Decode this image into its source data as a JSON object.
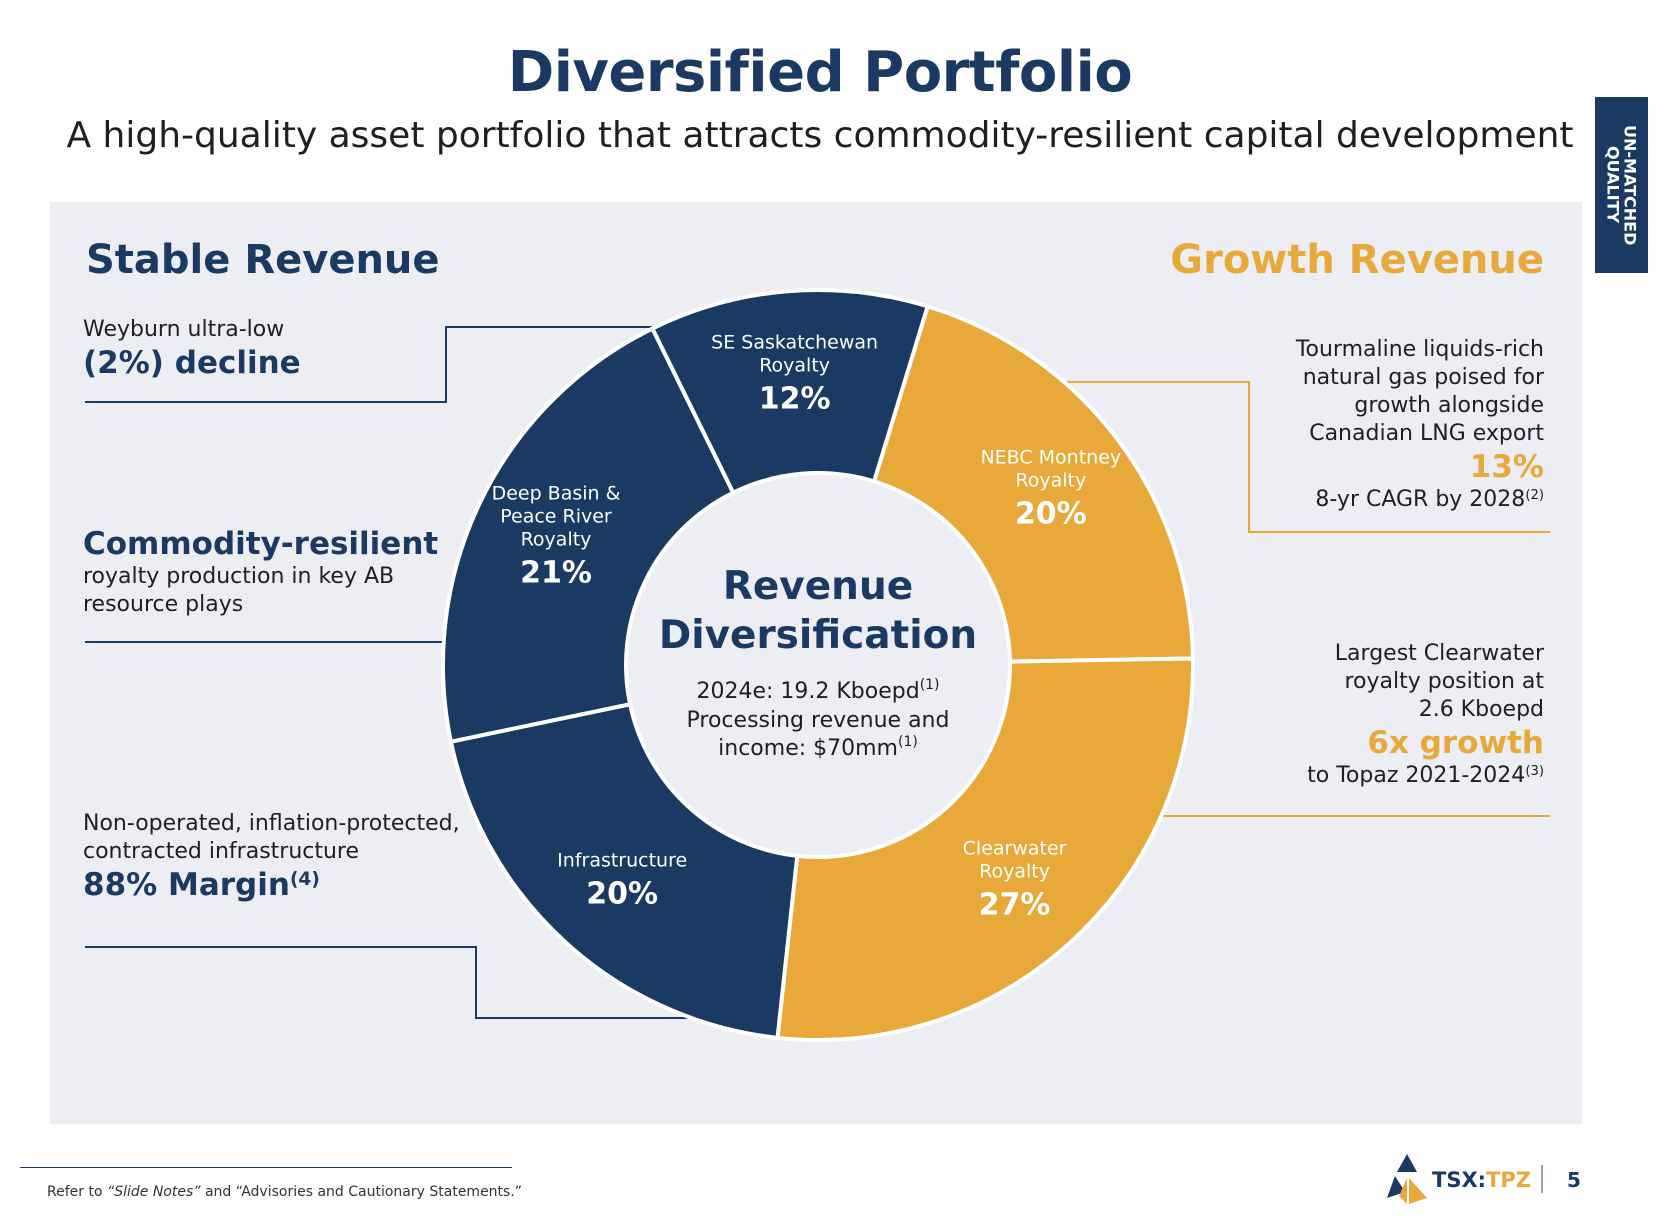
{
  "title": "Diversified Portfolio",
  "subtitle": "A high-quality asset portfolio that attracts commodity-resilient capital development",
  "side_tab": "UN-MATCHED QUALITY",
  "stable_header": "Stable Revenue",
  "growth_header": "Growth Revenue",
  "left_callouts": {
    "weyburn": {
      "line1": "Weyburn ultra-low",
      "big": "(2%) decline"
    },
    "resilient": {
      "big": "Commodity-resilient",
      "line1": "royalty production in key AB",
      "line2": "resource plays"
    },
    "infra": {
      "line1": "Non-operated, inflation-protected,",
      "line2": "contracted infrastructure",
      "big": "88% Margin",
      "sup": "(4)"
    }
  },
  "right_callouts": {
    "tourmaline": {
      "line1": "Tourmaline liquids-rich",
      "line2": "natural gas poised for",
      "line3": "growth alongside",
      "line4": "Canadian LNG export",
      "big": "13%",
      "foot": "8-yr CAGR by 2028",
      "sup": "(2)"
    },
    "clearwater": {
      "line1": "Largest Clearwater",
      "line2": "royalty position at",
      "line3": "2.6 Kboepd",
      "big": "6x growth",
      "foot": "to Topaz 2021-2024",
      "sup": "(3)"
    }
  },
  "center": {
    "title1": "Revenue",
    "title2": "Diversification",
    "line1": "2024e: 19.2 Kboepd",
    "line1_sup": "(1)",
    "line2": "Processing revenue and",
    "line3": "income: $70mm",
    "line3_sup": "(1)"
  },
  "chart_data": {
    "type": "pie",
    "title": "Revenue Diversification",
    "unit": "%",
    "slices": [
      {
        "label": "NEBC Montney Royalty",
        "value": 20,
        "group": "Growth Revenue",
        "color": "#e8a93a"
      },
      {
        "label": "Clearwater Royalty",
        "value": 27,
        "group": "Growth Revenue",
        "color": "#e8a93a"
      },
      {
        "label": "Infrastructure",
        "value": 20,
        "group": "Stable Revenue",
        "color": "#1b3a63"
      },
      {
        "label": "Deep Basin & Peace River Royalty",
        "value": 21,
        "group": "Stable Revenue",
        "color": "#1b3a63"
      },
      {
        "label": "SE Saskatchewan Royalty",
        "value": 12,
        "group": "Stable Revenue",
        "color": "#1b3a63"
      }
    ],
    "slice_label_lines": [
      [
        "NEBC Montney",
        "Royalty"
      ],
      [
        "Clearwater",
        "Royalty"
      ],
      [
        "Infrastructure"
      ],
      [
        "Deep Basin &",
        "Peace River",
        "Royalty"
      ],
      [
        "SE Saskatchewan",
        "Royalty"
      ]
    ],
    "value_labels": [
      "20%",
      "27%",
      "20%",
      "21%",
      "12%"
    ]
  },
  "footer": {
    "note_prefix": "Refer to ",
    "note_italic": "“Slide Notes”",
    "note_suffix": " and “Advisories and Cautionary Statements.”",
    "ticker_tsx": "TSX:",
    "ticker_tpz": "TPZ",
    "page": "5"
  },
  "colors": {
    "navy": "#1b3a63",
    "gold": "#e8a93a",
    "panel": "#eceef4"
  }
}
